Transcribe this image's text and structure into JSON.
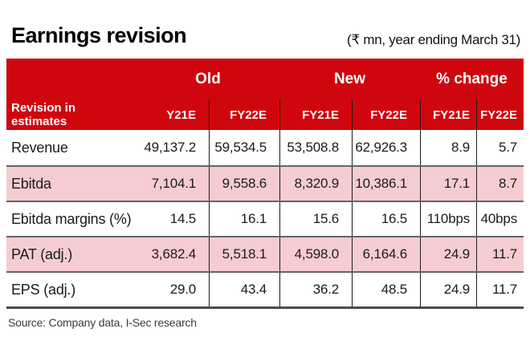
{
  "title": "Earnings revision",
  "unit_note": "(₹ mn, year ending March 31)",
  "source": "Source: Company data, I-Sec research",
  "colors": {
    "header_red": "#d0060e",
    "row_pink": "#f5cdd1",
    "row_separator": "#636363",
    "column_divider": "#1c1c1c"
  },
  "chart_data": {
    "type": "table",
    "title": "Earnings revision",
    "unit": "₹ mn, year ending March 31",
    "corner_label": "Revision in estimates",
    "group_headers": [
      "Old",
      "New",
      "% change"
    ],
    "column_headers": [
      "Y21E",
      "FY22E",
      "FY21E",
      "FY22E",
      "FY21E",
      "FY22E"
    ],
    "rows": [
      {
        "label": "Revenue",
        "values": [
          "49,137.2",
          "59,534.5",
          "53,508.8",
          "62,926.3",
          "8.9",
          "5.7"
        ]
      },
      {
        "label": "Ebitda",
        "values": [
          "7,104.1",
          "9,558.6",
          "8,320.9",
          "10,386.1",
          "17.1",
          "8.7"
        ]
      },
      {
        "label": "Ebitda margins (%)",
        "values": [
          "14.5",
          "16.1",
          "15.6",
          "16.5",
          "110bps",
          "40bps"
        ]
      },
      {
        "label": "PAT (adj.)",
        "values": [
          "3,682.4",
          "5,518.1",
          "4,598.0",
          "6,164.6",
          "24.9",
          "11.7"
        ]
      },
      {
        "label": "EPS (adj.)",
        "values": [
          "29.0",
          "43.4",
          "36.2",
          "48.5",
          "24.9",
          "11.7"
        ]
      }
    ]
  }
}
